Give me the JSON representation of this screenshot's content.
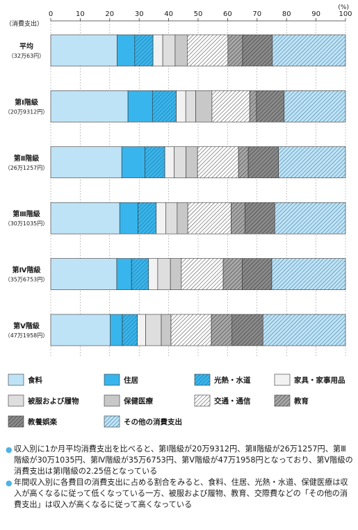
{
  "chart_data": {
    "type": "bar",
    "orientation": "horizontal",
    "stacked": true,
    "y_axis_title": "（消費支出）",
    "x_unit": "(%)",
    "xlim": [
      0,
      100
    ],
    "x_ticks": [
      0,
      10,
      20,
      30,
      40,
      50,
      60,
      70,
      80,
      90,
      100
    ],
    "categories": [
      {
        "name": "平均",
        "sub": "（32万63円）"
      },
      {
        "name": "第Ⅰ階級",
        "sub": "（20万9312円）"
      },
      {
        "name": "第Ⅱ階級",
        "sub": "（26万1257円）"
      },
      {
        "name": "第Ⅲ階級",
        "sub": "（30万1035円）"
      },
      {
        "name": "第Ⅳ階級",
        "sub": "（35万6753円）"
      },
      {
        "name": "第Ⅴ階級",
        "sub": "（47万1958円）"
      }
    ],
    "series": [
      {
        "name": "食料",
        "color": "#bfe3f6",
        "pattern": "solid",
        "values": [
          22.5,
          26.2,
          24.1,
          23.4,
          22.4,
          20.2
        ]
      },
      {
        "name": "住居",
        "color": "#38b5ec",
        "pattern": "solid",
        "values": [
          6.0,
          8.3,
          7.9,
          6.2,
          5.0,
          4.1
        ]
      },
      {
        "name": "光熱・水道",
        "color": "#38b5ec",
        "pattern": "diag-light",
        "values": [
          6.2,
          8.1,
          6.7,
          6.2,
          5.8,
          5.1
        ]
      },
      {
        "name": "家具・家事用品",
        "color": "#f2f2f2",
        "pattern": "solid",
        "values": [
          3.3,
          3.2,
          3.2,
          3.2,
          3.1,
          2.8
        ]
      },
      {
        "name": "被服および履物",
        "color": "#dedede",
        "pattern": "solid",
        "values": [
          4.2,
          3.4,
          4.0,
          3.9,
          4.3,
          5.3
        ]
      },
      {
        "name": "保健医療",
        "color": "#c8c8c8",
        "pattern": "solid",
        "values": [
          4.1,
          5.5,
          3.9,
          3.6,
          3.7,
          3.3
        ]
      },
      {
        "name": "交通・通信",
        "color": "#ffffff",
        "pattern": "diag-dark",
        "values": [
          13.8,
          12.8,
          13.9,
          14.7,
          14.2,
          13.7
        ]
      },
      {
        "name": "教育",
        "color": "#a8a8a8",
        "pattern": "diag-dark",
        "values": [
          5.0,
          2.3,
          3.3,
          4.7,
          6.5,
          7.0
        ]
      },
      {
        "name": "教養娯楽",
        "color": "#8a8a8a",
        "pattern": "diag-dark",
        "values": [
          10.1,
          9.4,
          10.3,
          10.1,
          10.0,
          10.5
        ]
      },
      {
        "name": "その他の消費支出",
        "color": "#bfe3f6",
        "pattern": "diag-light",
        "values": [
          24.8,
          20.8,
          22.7,
          24.0,
          25.0,
          28.0
        ]
      }
    ]
  },
  "notes": [
    "収入別に1か月平均消費支出を比べると、第Ⅰ階級が20万9312円、第Ⅱ階級が26万1257円、第Ⅲ階級が30万1035円、第Ⅳ階級が35万6753円、第Ⅴ階級が47万1958円となっており、第Ⅴ階級の消費支出は第Ⅰ階級の2.25倍となっている",
    "年間収入別に各費目の消費支出に占める割合をみると、食料、住居、光熱・水道、保健医療は収入が高くなるに従って低くなっている一方、被服および履物、教育、交際費などの「その他の消費支出」は収入が高くなるに従って高くなっている"
  ]
}
